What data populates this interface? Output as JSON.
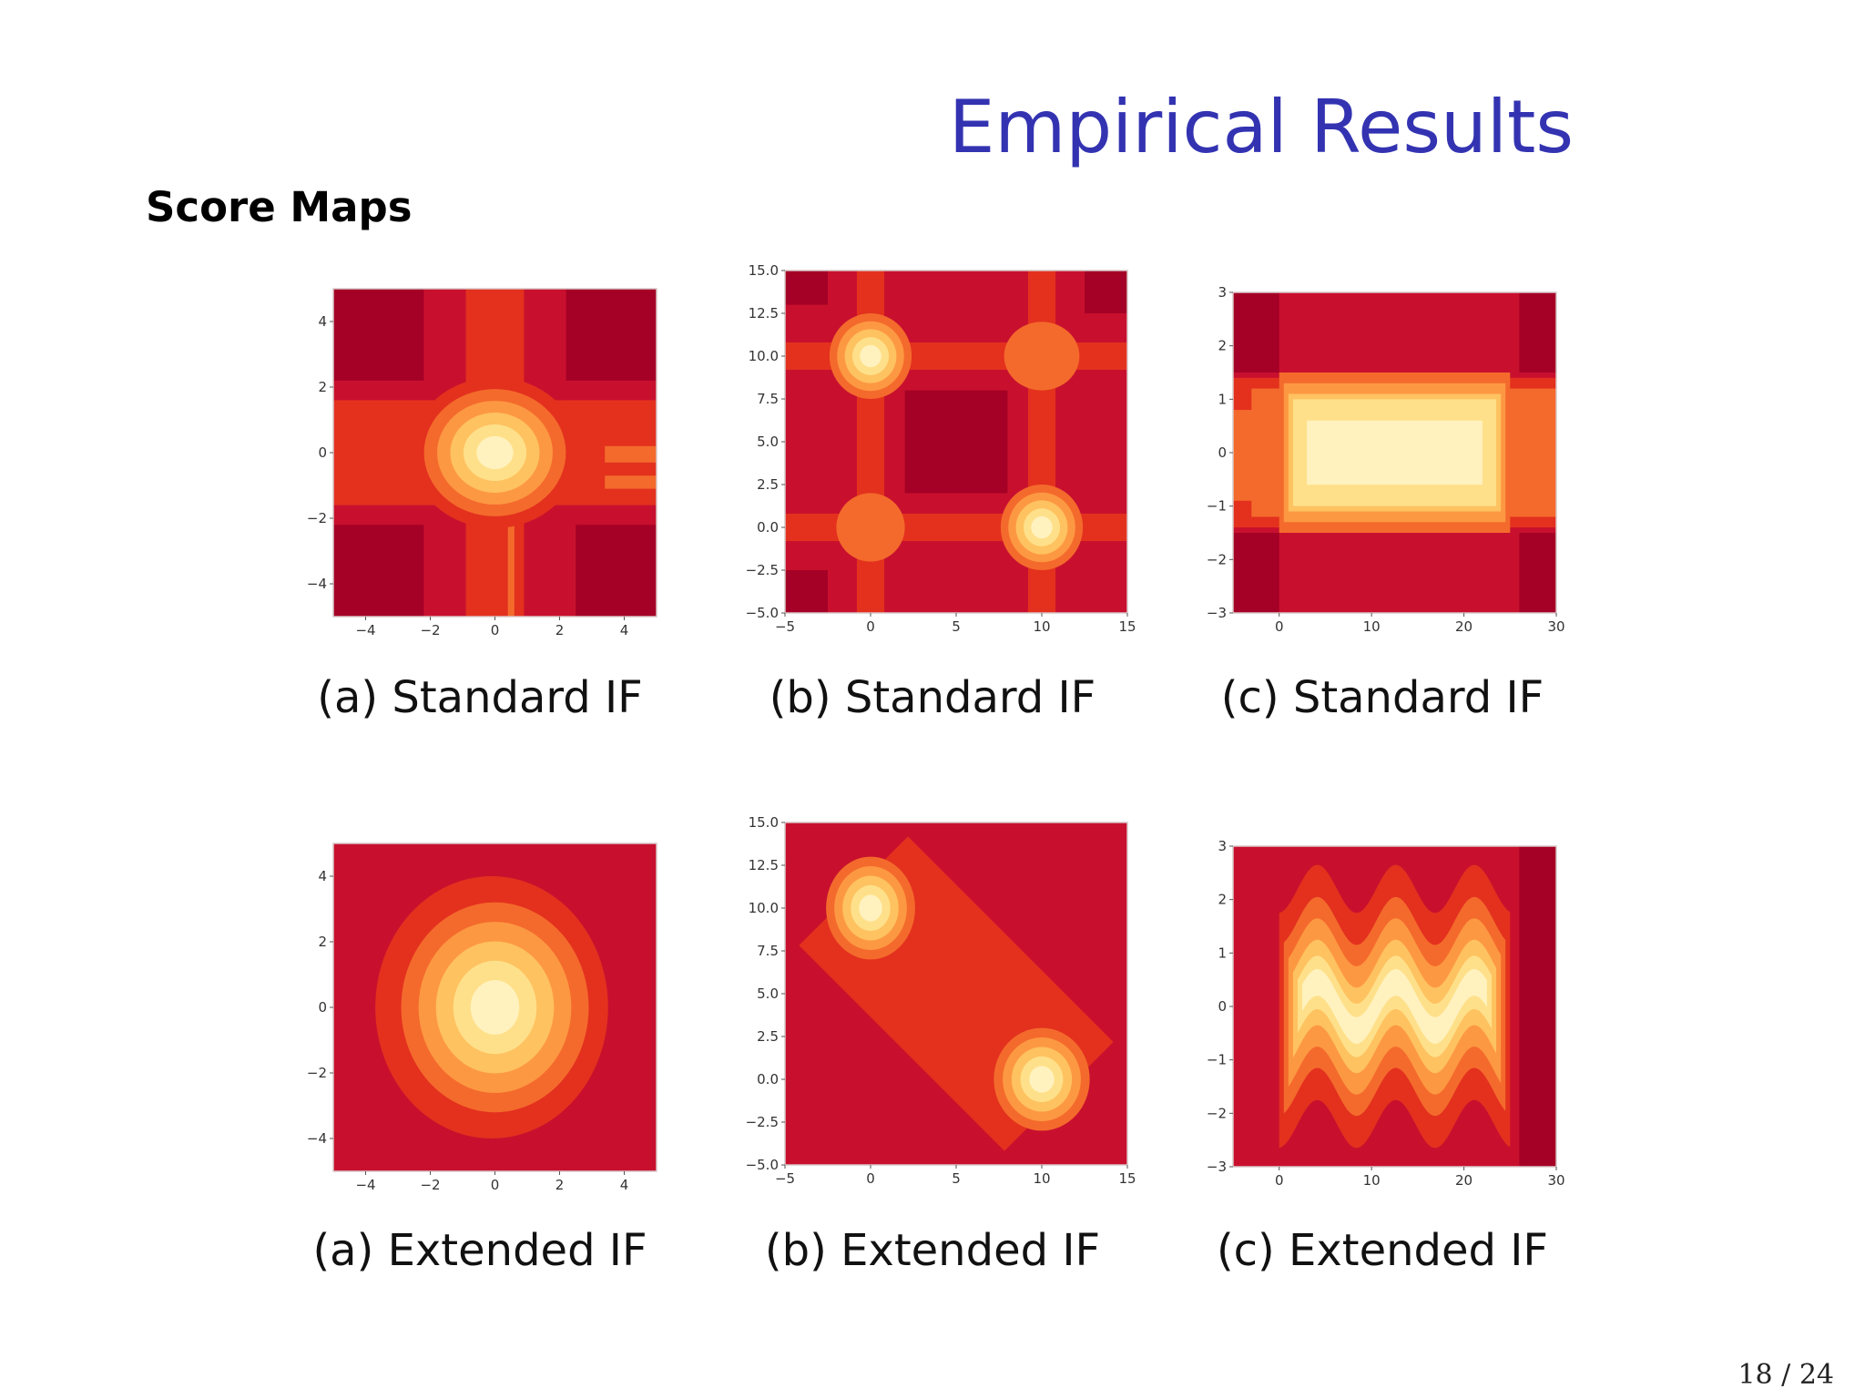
{
  "slide": {
    "title": "Empirical Results",
    "subtitle": "Score Maps",
    "page_number": "18 / 24"
  },
  "colors": {
    "title": "#3333b2",
    "score_scale": [
      "#a50026",
      "#c8102e",
      "#e3311e",
      "#f46a2c",
      "#fd9842",
      "#fec260",
      "#ffe08a",
      "#fff2bf"
    ]
  },
  "chart_data": [
    {
      "type": "heatmap",
      "id": "a-standard",
      "caption": "(a) Standard IF",
      "xlabel": "",
      "ylabel": "",
      "xlim": [
        -5,
        5
      ],
      "ylim": [
        -5,
        5
      ],
      "xticks": [
        "−4",
        "−2",
        "0",
        "2",
        "4"
      ],
      "xtick_values": [
        -4,
        -2,
        0,
        2,
        4
      ],
      "yticks": [
        "4",
        "2",
        "0",
        "−2",
        "−4"
      ],
      "ytick_values": [
        4,
        2,
        0,
        -2,
        -4
      ],
      "grid": false,
      "background_level": 1,
      "rects": [
        {
          "x": [
            -5,
            -2.2
          ],
          "y": [
            2.2,
            5
          ],
          "level": 0
        },
        {
          "x": [
            2.2,
            5
          ],
          "y": [
            2.2,
            5
          ],
          "level": 0
        },
        {
          "x": [
            -5,
            -2.2
          ],
          "y": [
            -5,
            -2.2
          ],
          "level": 0
        },
        {
          "x": [
            2.5,
            5
          ],
          "y": [
            -5,
            -2.2
          ],
          "level": 0
        },
        {
          "x": [
            -0.9,
            0.9
          ],
          "y": [
            -5,
            5
          ],
          "level": 2
        },
        {
          "x": [
            -5,
            5
          ],
          "y": [
            -1.6,
            1.6
          ],
          "level": 2
        },
        {
          "x": [
            3.4,
            5
          ],
          "y": [
            -1.1,
            -0.7
          ],
          "level": 3
        },
        {
          "x": [
            3.4,
            5
          ],
          "y": [
            -0.3,
            0.2
          ],
          "level": 3
        },
        {
          "x": [
            0.4,
            0.6
          ],
          "y": [
            -5,
            -1.8
          ],
          "level": 3
        }
      ],
      "blobs": [
        {
          "cx": 0,
          "cy": 0,
          "rx": 2.6,
          "ry": 2.3,
          "levels": [
            2,
            3,
            4,
            5,
            6,
            7
          ]
        }
      ]
    },
    {
      "type": "heatmap",
      "id": "b-standard",
      "caption": "(b) Standard IF",
      "xlabel": "",
      "ylabel": "",
      "xlim": [
        -5,
        15
      ],
      "ylim": [
        -5,
        15
      ],
      "xticks": [
        "−5",
        "0",
        "5",
        "10",
        "15"
      ],
      "xtick_values": [
        -5,
        0,
        5,
        10,
        15
      ],
      "yticks": [
        "15.0",
        "12.5",
        "10.0",
        "7.5",
        "5.0",
        "2.5",
        "0.0",
        "−2.5",
        "−5.0"
      ],
      "ytick_values": [
        15,
        12.5,
        10,
        7.5,
        5,
        2.5,
        0,
        -2.5,
        -5
      ],
      "grid": false,
      "background_level": 1,
      "rects": [
        {
          "x": [
            -5,
            -2.5
          ],
          "y": [
            13,
            15
          ],
          "level": 0
        },
        {
          "x": [
            12.5,
            15
          ],
          "y": [
            12.5,
            15
          ],
          "level": 0
        },
        {
          "x": [
            -5,
            -2.5
          ],
          "y": [
            -5,
            -2.5
          ],
          "level": 0
        },
        {
          "x": [
            2,
            8
          ],
          "y": [
            2,
            8
          ],
          "level": 0
        },
        {
          "x": [
            -0.8,
            0.8
          ],
          "y": [
            -5,
            15
          ],
          "level": 2
        },
        {
          "x": [
            9.2,
            10.8
          ],
          "y": [
            -5,
            15
          ],
          "level": 2
        },
        {
          "x": [
            -5,
            15
          ],
          "y": [
            9.2,
            10.8
          ],
          "level": 2
        },
        {
          "x": [
            -5,
            15
          ],
          "y": [
            -0.8,
            0.8
          ],
          "level": 2
        }
      ],
      "blobs": [
        {
          "cx": 10,
          "cy": 10,
          "rx": 2.2,
          "ry": 2.0,
          "levels": [
            3
          ]
        },
        {
          "cx": 0,
          "cy": 0,
          "rx": 2.0,
          "ry": 2.0,
          "levels": [
            3
          ]
        },
        {
          "cx": 0,
          "cy": 10,
          "rx": 2.4,
          "ry": 2.5,
          "levels": [
            3,
            4,
            5,
            6,
            7
          ]
        },
        {
          "cx": 10,
          "cy": 0,
          "rx": 2.4,
          "ry": 2.5,
          "levels": [
            3,
            4,
            5,
            6,
            7
          ]
        }
      ]
    },
    {
      "type": "heatmap",
      "id": "c-standard",
      "caption": "(c) Standard IF",
      "xlabel": "",
      "ylabel": "",
      "xlim": [
        -5,
        30
      ],
      "ylim": [
        -3,
        3
      ],
      "xticks": [
        "0",
        "10",
        "20",
        "30"
      ],
      "xtick_values": [
        0,
        10,
        20,
        30
      ],
      "yticks": [
        "3",
        "2",
        "1",
        "0",
        "−1",
        "−2",
        "−3"
      ],
      "ytick_values": [
        3,
        2,
        1,
        0,
        -1,
        -2,
        -3
      ],
      "grid": false,
      "background_level": 1,
      "rects": [
        {
          "x": [
            -5,
            0
          ],
          "y": [
            1.5,
            3
          ],
          "level": 0
        },
        {
          "x": [
            26,
            30
          ],
          "y": [
            1.5,
            3
          ],
          "level": 0
        },
        {
          "x": [
            -5,
            0
          ],
          "y": [
            -3,
            -1.5
          ],
          "level": 0
        },
        {
          "x": [
            26,
            30
          ],
          "y": [
            -3,
            -1.5
          ],
          "level": 0
        },
        {
          "x": [
            -5,
            30
          ],
          "y": [
            -1.4,
            1.4
          ],
          "level": 2
        },
        {
          "x": [
            -5,
            30
          ],
          "y": [
            -0.9,
            0.8
          ],
          "level": 3
        },
        {
          "x": [
            -3,
            30
          ],
          "y": [
            -1.2,
            1.2
          ],
          "level": 3
        },
        {
          "x": [
            0,
            25
          ],
          "y": [
            -1.5,
            1.5
          ],
          "level": 3
        },
        {
          "x": [
            0.5,
            24.5
          ],
          "y": [
            -1.3,
            1.3
          ],
          "level": 4
        },
        {
          "x": [
            1,
            24
          ],
          "y": [
            -1.1,
            1.1
          ],
          "level": 5
        },
        {
          "x": [
            1.5,
            23.5
          ],
          "y": [
            -1.0,
            1.0
          ],
          "level": 6
        },
        {
          "x": [
            3,
            22
          ],
          "y": [
            -0.6,
            0.6
          ],
          "level": 7
        }
      ],
      "blobs": []
    },
    {
      "type": "heatmap",
      "id": "a-extended",
      "caption": "(a) Extended IF",
      "xlabel": "",
      "ylabel": "",
      "xlim": [
        -5,
        5
      ],
      "ylim": [
        -5,
        5
      ],
      "xticks": [
        "−4",
        "−2",
        "0",
        "2",
        "4"
      ],
      "xtick_values": [
        -4,
        -2,
        0,
        2,
        4
      ],
      "yticks": [
        "4",
        "2",
        "0",
        "−2",
        "−4"
      ],
      "ytick_values": [
        4,
        2,
        0,
        -2,
        -4
      ],
      "grid": false,
      "background_level": 1,
      "rects": [],
      "blobs": [
        {
          "cx": -0.1,
          "cy": 0,
          "rx": 3.6,
          "ry": 4.0,
          "levels": [
            2
          ]
        },
        {
          "cx": 0,
          "cy": 0,
          "rx": 2.9,
          "ry": 3.2,
          "levels": [
            3,
            4,
            5,
            6,
            7
          ]
        }
      ]
    },
    {
      "type": "heatmap",
      "id": "b-extended",
      "caption": "(b) Extended IF",
      "xlabel": "",
      "ylabel": "",
      "xlim": [
        -5,
        15
      ],
      "ylim": [
        -5,
        15
      ],
      "xticks": [
        "−5",
        "0",
        "5",
        "10",
        "15"
      ],
      "xtick_values": [
        -5,
        0,
        5,
        10,
        15
      ],
      "yticks": [
        "15.0",
        "12.5",
        "10.0",
        "7.5",
        "5.0",
        "2.5",
        "0.0",
        "−2.5",
        "−5.0"
      ],
      "ytick_values": [
        15,
        12.5,
        10,
        7.5,
        5,
        2.5,
        0,
        -2.5,
        -5
      ],
      "grid": false,
      "background_level": 1,
      "rects": [],
      "bands": [
        {
          "x1": -1,
          "y1": 11,
          "x2": 11,
          "y2": -1,
          "width": 9,
          "level": 2
        }
      ],
      "blobs": [
        {
          "cx": 0,
          "cy": 10,
          "rx": 2.6,
          "ry": 3.0,
          "levels": [
            3,
            4,
            5,
            6,
            7
          ]
        },
        {
          "cx": 10,
          "cy": 0,
          "rx": 2.8,
          "ry": 3.0,
          "levels": [
            3,
            4,
            5,
            6,
            7
          ]
        }
      ]
    },
    {
      "type": "heatmap",
      "id": "c-extended",
      "caption": "(c) Extended IF",
      "xlabel": "",
      "ylabel": "",
      "xlim": [
        -5,
        30
      ],
      "ylim": [
        -3,
        3
      ],
      "xticks": [
        "0",
        "10",
        "20",
        "30"
      ],
      "xtick_values": [
        0,
        10,
        20,
        30
      ],
      "yticks": [
        "3",
        "2",
        "1",
        "0",
        "−1",
        "−2",
        "−3"
      ],
      "ytick_values": [
        3,
        2,
        1,
        0,
        -1,
        -2,
        -3
      ],
      "grid": false,
      "background_level": 1,
      "rects": [
        {
          "x": [
            26,
            30
          ],
          "y": [
            -3,
            3
          ],
          "level": 0
        }
      ],
      "waves": [
        {
          "x0": 0,
          "x1": 25,
          "amp": 0.45,
          "period": 8.5,
          "half": 2.2,
          "level": 2
        },
        {
          "x0": 0.5,
          "x1": 24.5,
          "amp": 0.45,
          "period": 8.5,
          "half": 1.6,
          "level": 3
        },
        {
          "x0": 1,
          "x1": 24,
          "amp": 0.45,
          "period": 8.5,
          "half": 1.2,
          "level": 4
        },
        {
          "x0": 1.5,
          "x1": 23.5,
          "amp": 0.45,
          "period": 8.5,
          "half": 0.8,
          "level": 5
        },
        {
          "x0": 2,
          "x1": 23,
          "amp": 0.45,
          "period": 8.5,
          "half": 0.5,
          "level": 6
        },
        {
          "x0": 2.5,
          "x1": 22.5,
          "amp": 0.45,
          "period": 8.5,
          "half": 0.25,
          "level": 7
        }
      ],
      "blobs": []
    }
  ]
}
